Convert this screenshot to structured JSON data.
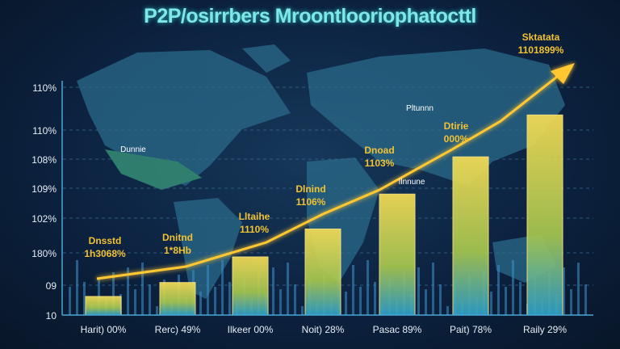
{
  "chart_data": {
    "type": "bar",
    "title": "P2P/osirrbers Mroontlooriophatocttl",
    "categories": [
      "Harit) 00%",
      "Rerc) 49%",
      "Ilkeer 00%",
      "Noit) 28%",
      "Pasac 89%",
      "Pait) 78%",
      "Raily 29%"
    ],
    "values": [
      8,
      14,
      25,
      37,
      52,
      68,
      86
    ],
    "ylim": [
      0,
      100
    ],
    "y_tick_labels": [
      "10",
      "09",
      "180%",
      "102%",
      "109%",
      "108%",
      "110%",
      "110%"
    ],
    "annotations": [
      {
        "line1": "Dnsstd",
        "line2": "1h3068%"
      },
      {
        "line1": "Dnitnd",
        "line2": "1*8Hb"
      },
      {
        "line1": "Lltaihe",
        "line2": "1110%"
      },
      {
        "line1": "Dlnind",
        "line2": "1106%"
      },
      {
        "line1": "Dnoad",
        "line2": "1103%"
      },
      {
        "line1": "Dtirie",
        "line2": "000%"
      },
      {
        "line1": "Sktatata",
        "line2": "1101899%"
      }
    ],
    "map_labels": [
      "Dunnie",
      "Pltunnn",
      "Ilnnune"
    ],
    "trend": "upward arrow",
    "background": "world map",
    "grid": true,
    "colors": {
      "bar_top": "#f5d64a",
      "bar_bottom": "#2fa8c8",
      "trend": "#ffc830",
      "title": "#7fe8e6",
      "label": "#f2c232",
      "axis": "#4aa8d8"
    }
  }
}
